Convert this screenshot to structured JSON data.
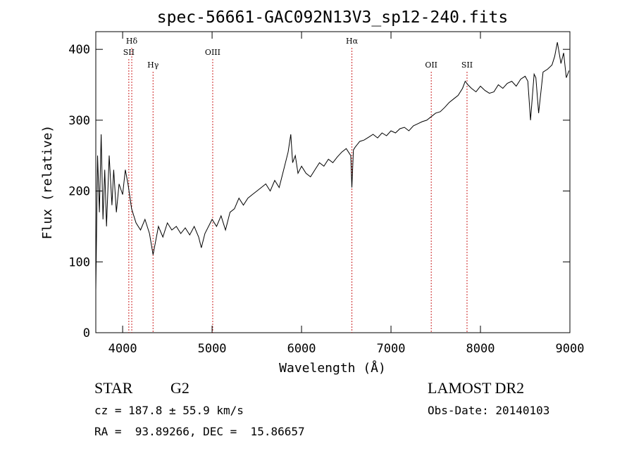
{
  "chart_data": {
    "type": "line",
    "title": "spec-56661-GAC092N13V3_sp12-240.fits",
    "xlabel": "Wavelength (Å)",
    "ylabel": "Flux (relative)",
    "xlim": [
      3700,
      9000
    ],
    "ylim": [
      0,
      425
    ],
    "xticks": [
      4000,
      5000,
      6000,
      7000,
      8000,
      9000
    ],
    "yticks": [
      0,
      100,
      200,
      300,
      400
    ],
    "line_color": "#000000",
    "marker_color": "#cc2222",
    "grid": false,
    "series": [
      {
        "x": [
          3700,
          3720,
          3740,
          3760,
          3780,
          3800,
          3820,
          3850,
          3880,
          3900,
          3930,
          3960,
          4000,
          4030,
          4060,
          4100,
          4150,
          4200,
          4250,
          4300,
          4340,
          4400,
          4450,
          4500,
          4550,
          4600,
          4650,
          4700,
          4750,
          4800,
          4850,
          4880,
          4920,
          5000,
          5050,
          5100,
          5150,
          5200,
          5250,
          5300,
          5350,
          5400,
          5450,
          5500,
          5550,
          5600,
          5650,
          5700,
          5750,
          5800,
          5850,
          5880,
          5900,
          5930,
          5960,
          6000,
          6050,
          6100,
          6150,
          6200,
          6250,
          6300,
          6350,
          6400,
          6450,
          6500,
          6550,
          6563,
          6580,
          6600,
          6650,
          6700,
          6750,
          6800,
          6850,
          6900,
          6950,
          7000,
          7050,
          7100,
          7150,
          7200,
          7250,
          7300,
          7350,
          7400,
          7450,
          7500,
          7550,
          7600,
          7650,
          7700,
          7750,
          7800,
          7830,
          7860,
          7900,
          7950,
          8000,
          8050,
          8100,
          8150,
          8200,
          8250,
          8300,
          8350,
          8400,
          8450,
          8500,
          8530,
          8560,
          8600,
          8620,
          8650,
          8700,
          8750,
          8800,
          8830,
          8860,
          8900,
          8930,
          8960,
          8990
        ],
        "values": [
          60,
          250,
          170,
          280,
          160,
          230,
          150,
          250,
          180,
          230,
          170,
          210,
          195,
          230,
          210,
          175,
          155,
          145,
          160,
          140,
          110,
          150,
          135,
          155,
          145,
          150,
          140,
          148,
          138,
          150,
          135,
          120,
          140,
          160,
          150,
          165,
          145,
          170,
          175,
          190,
          180,
          190,
          195,
          200,
          205,
          210,
          200,
          215,
          205,
          230,
          255,
          280,
          240,
          250,
          225,
          235,
          225,
          220,
          230,
          240,
          235,
          245,
          240,
          248,
          255,
          260,
          250,
          205,
          258,
          262,
          270,
          272,
          276,
          280,
          275,
          282,
          278,
          285,
          282,
          288,
          290,
          285,
          292,
          295,
          298,
          300,
          305,
          310,
          312,
          318,
          325,
          330,
          335,
          345,
          355,
          350,
          345,
          340,
          348,
          342,
          338,
          340,
          350,
          345,
          352,
          355,
          348,
          358,
          362,
          355,
          300,
          365,
          360,
          310,
          368,
          372,
          378,
          390,
          410,
          380,
          395,
          360,
          370
        ]
      }
    ],
    "lines": [
      {
        "label": "Hδ",
        "x": 4102,
        "row": 1
      },
      {
        "label": "SII",
        "x": 4069,
        "row": 2
      },
      {
        "label": "Hγ",
        "x": 4340,
        "row": 3
      },
      {
        "label": "OIII",
        "x": 5007,
        "row": 2
      },
      {
        "label": "Hα",
        "x": 6563,
        "row": 1
      },
      {
        "label": "OII",
        "x": 7450,
        "row": 3
      },
      {
        "label": "SII",
        "x": 7850,
        "row": 3
      }
    ]
  },
  "info": {
    "object_type": "STAR",
    "subclass": "G2",
    "survey": "LAMOST DR2",
    "cz": "cz = 187.8 ± 55.9 km/s",
    "obs_date": "Obs-Date: 20140103",
    "coords": "RA =  93.89266, DEC =  15.86657"
  }
}
